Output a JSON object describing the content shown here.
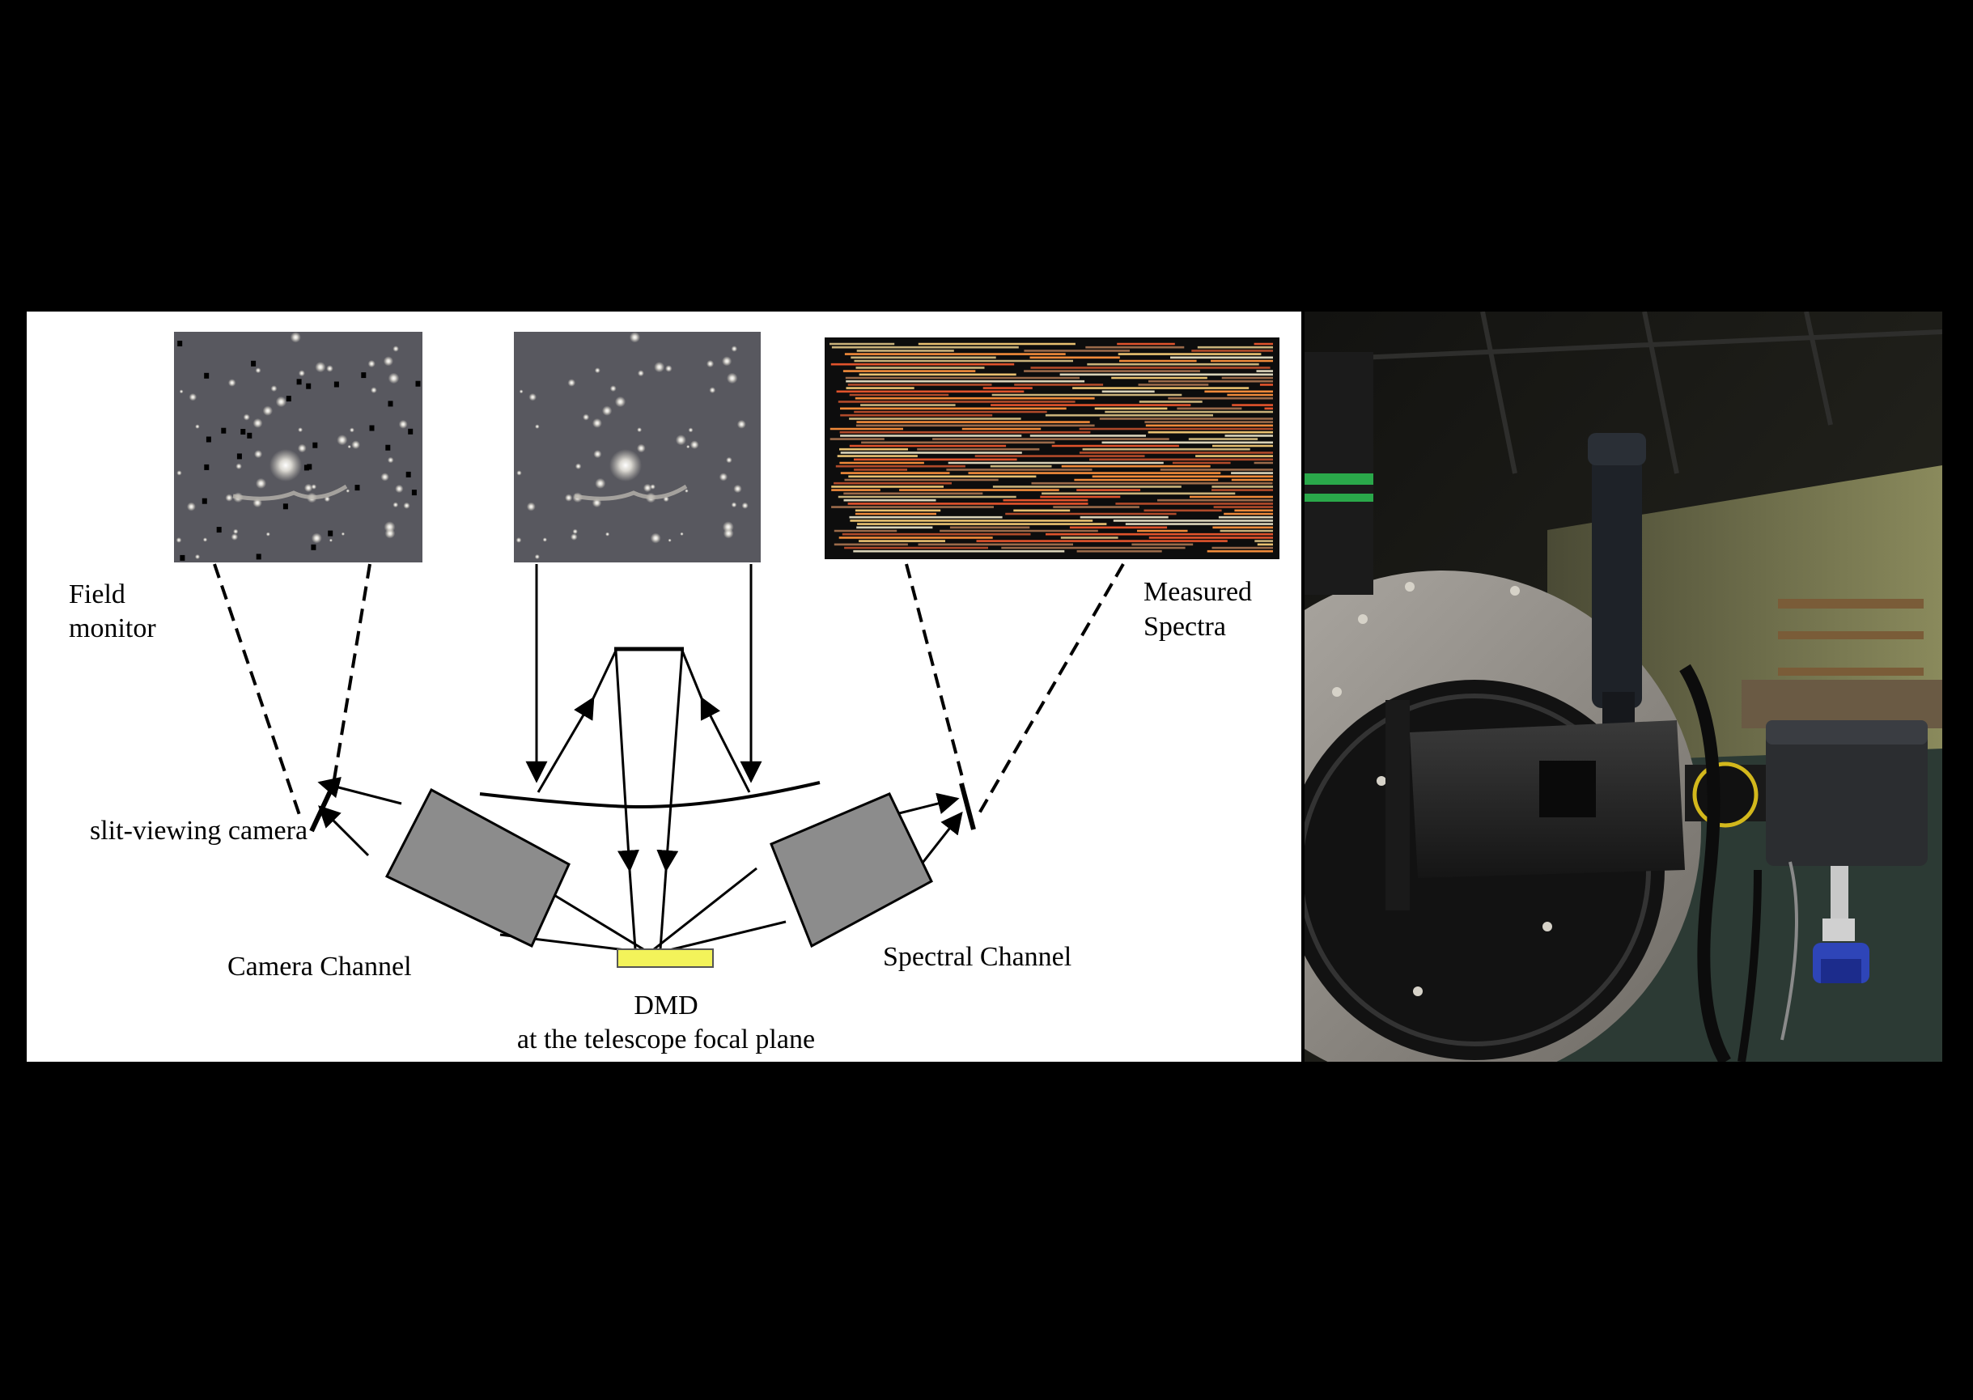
{
  "diagram": {
    "field_monitor_line1": "Field",
    "field_monitor_line2": "monitor",
    "measured_spectra_line1": "Measured",
    "measured_spectra_line2": "Spectra",
    "slit_viewing_camera": "slit-viewing camera",
    "camera_channel": "Camera Channel",
    "spectral_channel": "Spectral Channel",
    "dmd_line1": "DMD",
    "dmd_line2": "at the telescope focal plane"
  },
  "colors": {
    "dmd_fill": "#f3f35a",
    "channel_box": "#8c8c8c",
    "star_field_bg": "#58585f"
  }
}
